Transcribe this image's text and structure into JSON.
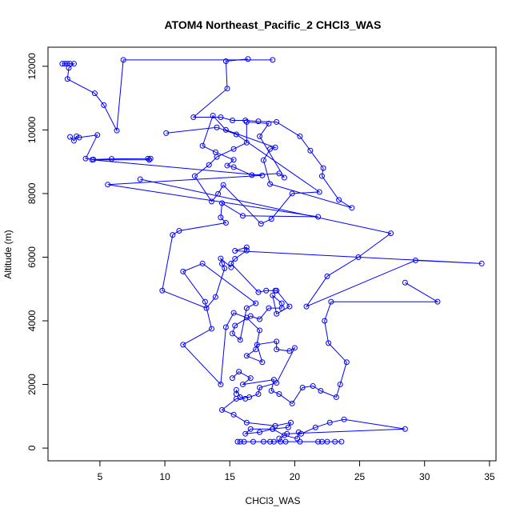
{
  "colors": {
    "series": "#0000ff",
    "axis": "#000000",
    "background": "#ffffff"
  },
  "chart_data": {
    "type": "line",
    "title": "ATOM4 Northeast_Pacific_2 CHCl3_WAS",
    "xlabel": "CHCl3_WAS",
    "ylabel": "Altitude (m)",
    "xlim": [
      1.0,
      35.5
    ],
    "ylim": [
      -400,
      12600
    ],
    "xticks": [
      5,
      10,
      15,
      20,
      25,
      30,
      35
    ],
    "yticks": [
      0,
      2000,
      4000,
      6000,
      8000,
      10000,
      12000
    ],
    "marker": "open-circle",
    "grid": false,
    "legend": "none",
    "series": [
      {
        "points": [
          [
            2.1,
            12080
          ],
          [
            2.3,
            12080
          ],
          [
            2.5,
            12080
          ],
          [
            2.7,
            12080
          ],
          [
            3.0,
            12080
          ],
          [
            2.6,
            11950
          ],
          [
            2.5,
            11600
          ],
          [
            4.6,
            11150
          ],
          [
            5.3,
            10780
          ],
          [
            6.3,
            9980
          ],
          [
            6.8,
            12200
          ],
          [
            18.3,
            12200
          ]
        ]
      },
      {
        "points": [
          [
            16.4,
            12230
          ],
          [
            14.7,
            12160
          ],
          [
            14.8,
            11300
          ],
          [
            12.2,
            10400
          ],
          [
            14.3,
            10400
          ],
          [
            15.2,
            10300
          ],
          [
            16.2,
            10300
          ],
          [
            17.2,
            10270
          ],
          [
            18.6,
            10250
          ],
          [
            20.4,
            9800
          ],
          [
            21.2,
            9350
          ],
          [
            22.2,
            8800
          ],
          [
            22.1,
            8550
          ],
          [
            23.4,
            7800
          ],
          [
            24.4,
            7550
          ],
          [
            18.1,
            8300
          ],
          [
            17.6,
            9050
          ],
          [
            18.1,
            9400
          ],
          [
            18.5,
            9450
          ],
          [
            14.7,
            10000
          ],
          [
            13.7,
            10450
          ],
          [
            12.9,
            9500
          ],
          [
            13.9,
            9300
          ],
          [
            15.3,
            9060
          ],
          [
            14.8,
            8880
          ],
          [
            15.3,
            8830
          ],
          [
            16.7,
            8580
          ],
          [
            18.8,
            8630
          ],
          [
            19.2,
            8500
          ],
          [
            17.3,
            9800
          ],
          [
            18.0,
            10200
          ],
          [
            16.3,
            10250
          ],
          [
            16.3,
            9600
          ],
          [
            15.3,
            9400
          ],
          [
            14.0,
            9150
          ],
          [
            13.4,
            8900
          ],
          [
            12.3,
            8550
          ],
          [
            13.6,
            7750
          ],
          [
            14.1,
            7990
          ],
          [
            14.5,
            8270
          ],
          [
            17.4,
            7050
          ],
          [
            18.2,
            7200
          ],
          [
            19.8,
            8000
          ],
          [
            21.9,
            8050
          ],
          [
            15.5,
            9860
          ],
          [
            14.0,
            10080
          ],
          [
            10.1,
            9900
          ]
        ]
      },
      {
        "points": [
          [
            2.7,
            9780
          ],
          [
            3.0,
            9660
          ],
          [
            3.2,
            9800
          ],
          [
            3.4,
            9760
          ],
          [
            4.8,
            9840
          ],
          [
            3.9,
            9100
          ],
          [
            4.5,
            9070
          ],
          [
            5.9,
            9090
          ],
          [
            8.9,
            9100
          ],
          [
            8.7,
            9100
          ],
          [
            8.8,
            9060
          ],
          [
            4.4,
            9060
          ],
          [
            17.5,
            8570
          ],
          [
            5.6,
            8280
          ],
          [
            21.8,
            7270
          ],
          [
            16.0,
            7300
          ],
          [
            14.4,
            7700
          ],
          [
            14.3,
            7250
          ],
          [
            14.7,
            7080
          ],
          [
            11.1,
            6830
          ],
          [
            10.6,
            6700
          ],
          [
            9.8,
            4950
          ],
          [
            13.2,
            4400
          ],
          [
            13.9,
            4750
          ],
          [
            14.6,
            5650
          ],
          [
            14.4,
            5790
          ],
          [
            14.3,
            5960
          ],
          [
            15.1,
            5680
          ]
        ]
      },
      {
        "points": [
          [
            8.1,
            8450
          ],
          [
            27.4,
            6750
          ],
          [
            24.9,
            6000
          ],
          [
            22.5,
            5400
          ],
          [
            20.9,
            4450
          ],
          [
            29.3,
            5900
          ],
          [
            34.4,
            5800
          ],
          [
            15.4,
            6200
          ],
          [
            16.3,
            6310
          ],
          [
            16.3,
            6210
          ],
          [
            15.4,
            5950
          ],
          [
            15.1,
            5800
          ],
          [
            17.2,
            4900
          ],
          [
            17.8,
            4950
          ],
          [
            18.5,
            4950
          ],
          [
            18.6,
            4950
          ],
          [
            19.6,
            4450
          ],
          [
            18.6,
            4220
          ],
          [
            18.3,
            4800
          ],
          [
            19.0,
            4550
          ],
          [
            19.0,
            4400
          ],
          [
            18.0,
            4400
          ],
          [
            17.3,
            4050
          ],
          [
            16.6,
            4150
          ],
          [
            15.4,
            3850
          ],
          [
            15.2,
            3600
          ],
          [
            15.8,
            3400
          ],
          [
            16.3,
            4400
          ],
          [
            17.0,
            4550
          ],
          [
            12.9,
            5800
          ],
          [
            11.4,
            5550
          ],
          [
            13.1,
            4600
          ],
          [
            13.6,
            3750
          ],
          [
            11.4,
            3250
          ],
          [
            14.3,
            2000
          ],
          [
            14.7,
            3800
          ],
          [
            15.3,
            4250
          ],
          [
            16.3,
            4100
          ],
          [
            17.3,
            3700
          ],
          [
            17.0,
            3100
          ],
          [
            16.3,
            2900
          ],
          [
            17.5,
            2700
          ],
          [
            17.1,
            3250
          ],
          [
            18.6,
            3350
          ],
          [
            18.6,
            3100
          ],
          [
            19.6,
            3050
          ],
          [
            20.0,
            3150
          ],
          [
            18.6,
            2050
          ],
          [
            17.3,
            1900
          ],
          [
            17.2,
            1700
          ],
          [
            16.5,
            1600
          ],
          [
            15.8,
            1600
          ],
          [
            15.5,
            1830
          ],
          [
            15.5,
            1700
          ]
        ]
      },
      {
        "points": [
          [
            15.2,
            2200
          ],
          [
            15.7,
            2400
          ],
          [
            16.6,
            2200
          ],
          [
            16.0,
            2000
          ],
          [
            18.4,
            2150
          ],
          [
            18.2,
            1800
          ],
          [
            18.8,
            1700
          ],
          [
            19.8,
            1400
          ],
          [
            20.6,
            1900
          ],
          [
            21.4,
            1950
          ],
          [
            22.0,
            1800
          ],
          [
            23.2,
            1600
          ],
          [
            23.5,
            2000
          ],
          [
            24.0,
            2700
          ],
          [
            22.6,
            3300
          ],
          [
            22.3,
            4000
          ],
          [
            22.8,
            4600
          ],
          [
            31.0,
            4600
          ],
          [
            28.5,
            5200
          ]
        ]
      },
      {
        "points": [
          [
            16.2,
            1550
          ],
          [
            15.5,
            1550
          ],
          [
            14.4,
            1200
          ],
          [
            15.3,
            1050
          ],
          [
            16.3,
            800
          ],
          [
            18.5,
            700
          ],
          [
            19.7,
            800
          ],
          [
            19.5,
            650
          ],
          [
            18.3,
            600
          ],
          [
            17.3,
            500
          ],
          [
            16.2,
            450
          ],
          [
            16.6,
            600
          ],
          [
            18.3,
            600
          ],
          [
            19.2,
            400
          ],
          [
            20.2,
            300
          ],
          [
            20.3,
            500
          ],
          [
            20.5,
            450
          ],
          [
            21.6,
            650
          ],
          [
            22.7,
            800
          ],
          [
            23.8,
            900
          ],
          [
            28.5,
            600
          ],
          [
            19.4,
            450
          ],
          [
            18.8,
            300
          ]
        ]
      },
      {
        "points": [
          [
            15.8,
            200
          ],
          [
            15.6,
            200
          ],
          [
            16.1,
            200
          ],
          [
            16.8,
            200
          ],
          [
            17.6,
            200
          ],
          [
            18.1,
            200
          ],
          [
            18.4,
            200
          ],
          [
            18.9,
            200
          ],
          [
            19.3,
            200
          ],
          [
            20.4,
            200
          ],
          [
            21.8,
            200
          ],
          [
            22.1,
            200
          ],
          [
            22.5,
            200
          ],
          [
            23.1,
            200
          ],
          [
            23.6,
            200
          ]
        ]
      }
    ]
  }
}
